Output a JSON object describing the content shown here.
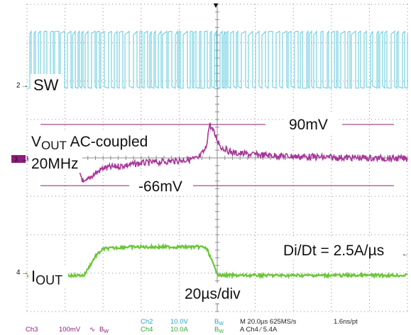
{
  "screen": {
    "trigger_glyph": "▼",
    "channel_markers": [
      {
        "id": "2",
        "arrow": "→",
        "color": "#2aa6c0",
        "fill": false
      },
      {
        "id": "3",
        "arrow": "→",
        "color": "#8b1e7a",
        "fill": true
      },
      {
        "id": "4",
        "arrow": "→",
        "color": "#3aa43a",
        "fill": false
      }
    ],
    "trigger_level_glyph": "←",
    "labels": {
      "sw": "SW",
      "vout_main": "V",
      "vout_sub": "OUT",
      "vout_rest": " AC-coupled",
      "vout_line2": "20MHz",
      "iout_main": "I",
      "iout_sub": "OUT",
      "v_peak": "90mV",
      "v_dip": "-66mV",
      "didt": "Di/Dt = 2.5A/µs",
      "timebase": "20µs/div"
    }
  },
  "footer": {
    "ch3_label": "Ch3",
    "ch3_scale": "100mV",
    "ch3_coupling": "∿",
    "ch3_bw": "B",
    "ch3_bw_sub": "W",
    "ch2_label": "Ch2",
    "ch2_scale": "10.0V",
    "ch2_bw": "B",
    "ch2_bw_sub": "W",
    "ch4_label": "Ch4",
    "ch4_scale": "10.0A",
    "ch4_bw": "B",
    "ch4_bw_sub": "W",
    "horiz": "M 20.0µs 625MS/s",
    "sample_interval": "1.6ns/pt",
    "trigger": "A  Ch4  ⁄  5.4A"
  },
  "colors": {
    "sw": "#5cc8dc",
    "vout": "#a8369a",
    "iout": "#6cc63a",
    "grid": "#8c8c8c",
    "annotation_line": "#8b1e7a",
    "footer_ch2": "#2aa6c0",
    "footer_ch3": "#8b1e7a",
    "footer_ch4": "#3aa43a",
    "trigger": "#e07020"
  },
  "chart_data": {
    "type": "line",
    "title": "",
    "xlabel": "",
    "ylabel": "",
    "x_unit": "µs",
    "timebase_per_div": 20,
    "divisions_x": 10,
    "divisions_y": 8,
    "xlim": [
      0,
      200
    ],
    "series": [
      {
        "name": "SW",
        "channel": "Ch2",
        "scale": "10.0V/div",
        "kind": "switching node, square-wave bursts",
        "x": [
          0,
          200
        ],
        "y": [
          0,
          22
        ]
      },
      {
        "name": "VOUT AC-coupled",
        "channel": "Ch3",
        "scale": "100mV/div",
        "y_unit": "mV",
        "x": [
          0,
          20,
          25,
          28,
          30,
          34,
          40,
          60,
          80,
          90,
          94,
          96,
          98,
          102,
          108,
          120,
          140,
          160,
          200
        ],
        "y": [
          0,
          0,
          -10,
          -40,
          -66,
          -45,
          -25,
          -12,
          -5,
          0,
          25,
          90,
          70,
          30,
          15,
          10,
          6,
          3,
          0
        ]
      },
      {
        "name": "IOUT",
        "channel": "Ch4",
        "scale": "10.0A/div",
        "y_unit": "A",
        "x": [
          0,
          30,
          36,
          40,
          45,
          52,
          80,
          93,
          95,
          97,
          99,
          101,
          103,
          200
        ],
        "y": [
          2.0,
          2.0,
          7.0,
          8.9,
          9.1,
          9.4,
          9.4,
          9.4,
          8.5,
          6.0,
          3.5,
          2.0,
          2.0,
          2.0
        ]
      }
    ],
    "annotations": [
      "90mV",
      "-66mV",
      "Di/Dt = 2.5A/µs",
      "20µs/div"
    ],
    "grid": true
  }
}
